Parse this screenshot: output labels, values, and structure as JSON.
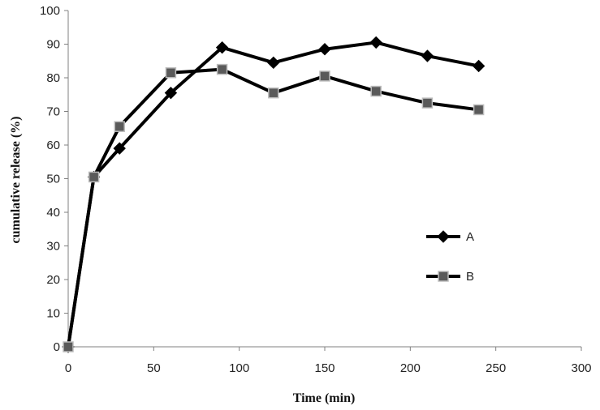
{
  "chart_data": {
    "type": "line",
    "title": "",
    "xlabel": "Time (min)",
    "ylabel": "cumulative release (%)",
    "xlim": [
      0,
      300
    ],
    "ylim": [
      0,
      100
    ],
    "xticks": [
      0,
      50,
      100,
      150,
      200,
      250,
      300
    ],
    "yticks": [
      0,
      10,
      20,
      30,
      40,
      50,
      60,
      70,
      80,
      90,
      100
    ],
    "x_tick_labels": [
      "0",
      "50",
      "100",
      "150",
      "200",
      "250",
      "300"
    ],
    "y_tick_labels": [
      "0",
      "10",
      "20",
      "30",
      "40",
      "50",
      "60",
      "70",
      "80",
      "90",
      "100"
    ],
    "grid": false,
    "legend_position": "right",
    "series": [
      {
        "name": "A",
        "marker": "diamond",
        "line_color": "#000000",
        "marker_color": "#000000",
        "x": [
          0,
          15,
          30,
          60,
          90,
          120,
          150,
          180,
          210,
          240
        ],
        "y": [
          0,
          50.5,
          59,
          75.5,
          89,
          84.5,
          88.5,
          90.5,
          86.5,
          83.5
        ]
      },
      {
        "name": "B",
        "marker": "square",
        "line_color": "#000000",
        "marker_color": "#5a5a5a",
        "x": [
          0,
          15,
          30,
          60,
          90,
          120,
          150,
          180,
          210,
          240
        ],
        "y": [
          0,
          50.5,
          65.5,
          81.5,
          82.5,
          75.5,
          80.5,
          76,
          72.5,
          70.5
        ]
      }
    ]
  }
}
